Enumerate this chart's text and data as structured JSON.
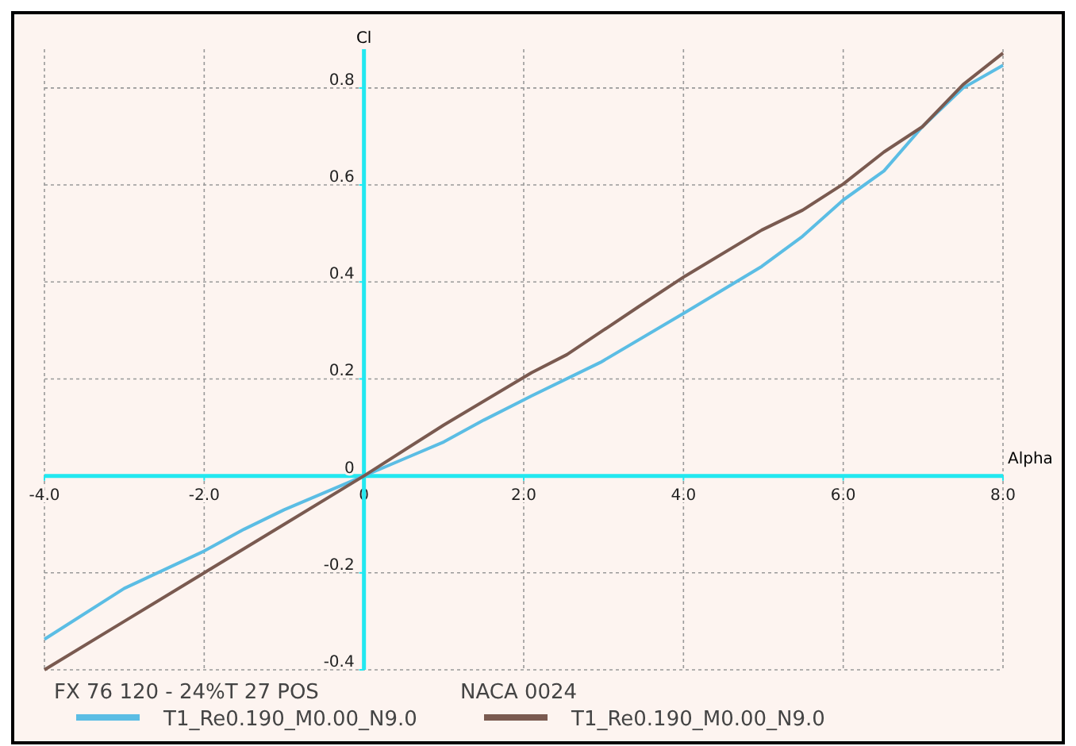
{
  "chart_data": {
    "type": "line",
    "xlabel": "Alpha",
    "ylabel": "Cl",
    "xlim": [
      -4,
      8
    ],
    "ylim": [
      -0.4,
      0.88
    ],
    "xticks": [
      {
        "value": -4,
        "label": "-4.0"
      },
      {
        "value": -2,
        "label": "-2.0"
      },
      {
        "value": 0,
        "label": "0"
      },
      {
        "value": 2,
        "label": "2.0"
      },
      {
        "value": 4,
        "label": "4.0"
      },
      {
        "value": 6,
        "label": "6.0"
      },
      {
        "value": 8,
        "label": "8.0"
      }
    ],
    "yticks": [
      -0.4,
      -0.2,
      0,
      0.2,
      0.4,
      0.6,
      0.8
    ],
    "grid": true,
    "legend": "bottom",
    "marker": "none",
    "line_style": "solid",
    "annotations": [
      "FX 76 120 - 24%T 27 POS",
      "NACA 0024"
    ],
    "series": [
      {
        "name": "T1_Re0.190_M0.00_N9.0",
        "color": "#5bbde4",
        "x": [
          -4,
          -3,
          -2,
          -1.5,
          -1,
          0,
          0.5,
          1,
          1.5,
          2.1,
          2.96,
          4.02,
          4.98,
          5.49,
          6,
          6.51,
          6.99,
          7.5,
          8
        ],
        "values": [
          -0.337,
          -0.232,
          -0.155,
          -0.11,
          -0.07,
          0,
          0.035,
          0.07,
          0.115,
          0.165,
          0.234,
          0.337,
          0.432,
          0.494,
          0.569,
          0.629,
          0.72,
          0.8,
          0.847
        ]
      },
      {
        "name": "T1_Re0.190_M0.00_N9.0",
        "color": "#7a5a50",
        "x": [
          -4,
          -3,
          -2,
          -1,
          0,
          1,
          2.1,
          2.54,
          3.43,
          4.02,
          4.98,
          5.49,
          6,
          6.51,
          6.99,
          7.5,
          8
        ],
        "values": [
          -0.4,
          -0.3,
          -0.2,
          -0.1,
          0,
          0.105,
          0.213,
          0.25,
          0.348,
          0.412,
          0.507,
          0.548,
          0.602,
          0.668,
          0.72,
          0.807,
          0.872
        ]
      }
    ]
  }
}
